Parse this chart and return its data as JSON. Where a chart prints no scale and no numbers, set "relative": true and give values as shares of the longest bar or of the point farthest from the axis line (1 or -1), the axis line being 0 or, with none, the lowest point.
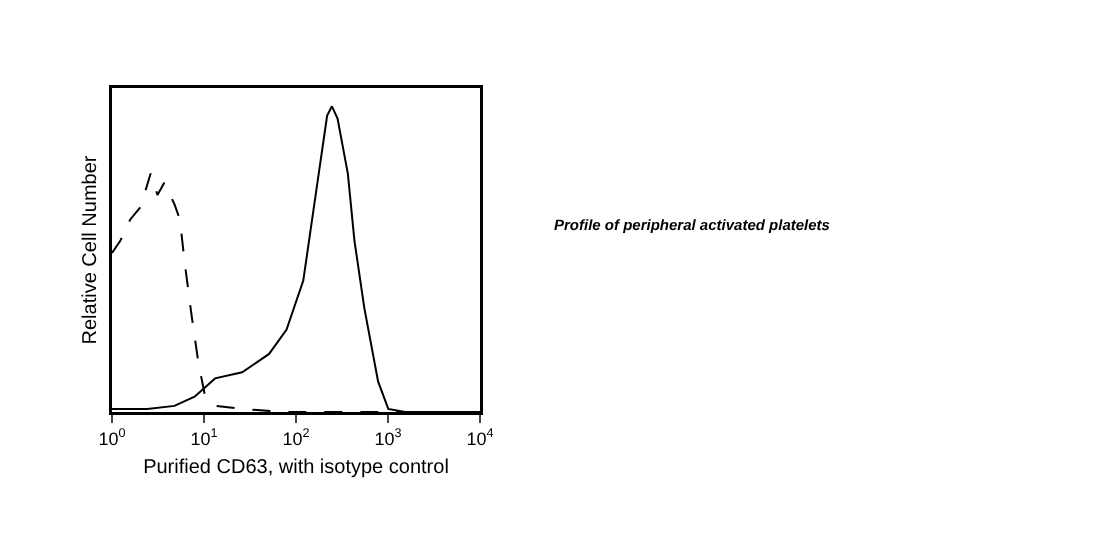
{
  "chart_data": {
    "type": "line",
    "relative": true,
    "log": "x",
    "xlabel": "Purified CD63, with isotype control",
    "ylabel": "Relative Cell Number",
    "xlim": [
      1,
      10000
    ],
    "xticks": [
      {
        "value": 1,
        "label": "10$^{0}$"
      },
      {
        "value": 10,
        "label": "10$^{1}$"
      },
      {
        "value": 100,
        "label": "10$^{2}$"
      },
      {
        "value": 1000,
        "label": "10$^{3}$"
      },
      {
        "value": 10000,
        "label": "10$^{4}$"
      }
    ],
    "grid": false,
    "legend": false,
    "marker": "none",
    "tick_labels": "x",
    "annotations": [
      "Profile of peripheral activated platelets"
    ],
    "series": [
      {
        "color": "#000000",
        "line_style": "dashed",
        "x": [
          1,
          1.23,
          1.58,
          2.04,
          2.63,
          3.12,
          3.7,
          4.77,
          5.47,
          6.16,
          7.3,
          8.7,
          10.3,
          13.2,
          26,
          72,
          10000
        ],
        "values": [
          0.52,
          0.56,
          0.63,
          0.67,
          0.78,
          0.71,
          0.75,
          0.68,
          0.63,
          0.49,
          0.32,
          0.16,
          0.05,
          0.02,
          0.01,
          0,
          0
        ]
      },
      {
        "color": "#000000",
        "line_style": "solid",
        "x": [
          1,
          2.42,
          4.77,
          7.9,
          13.2,
          26,
          51,
          79,
          120,
          169,
          218,
          246,
          283,
          366,
          432,
          553,
          780,
          1007,
          1540,
          10000
        ],
        "values": [
          0.01,
          0.01,
          0.02,
          0.05,
          0.11,
          0.13,
          0.19,
          0.27,
          0.43,
          0.74,
          0.97,
          1,
          0.96,
          0.78,
          0.56,
          0.34,
          0.1,
          0.01,
          0,
          0
        ]
      }
    ]
  }
}
